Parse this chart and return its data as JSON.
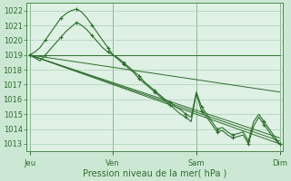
{
  "bg_color": "#cce8d4",
  "plot_bg": "#dff0e4",
  "grid_color": "#aacfb5",
  "line_color": "#2d6e2d",
  "tick_color": "#2d6e2d",
  "spine_color": "#4a8a4a",
  "xlabel": "Pression niveau de la mer( hPa )",
  "xlabel_fontsize": 7.0,
  "tick_fontsize": 6.0,
  "ylim": [
    1012.5,
    1022.5
  ],
  "yticks": [
    1013,
    1014,
    1015,
    1016,
    1017,
    1018,
    1019,
    1020,
    1021,
    1022
  ],
  "day_labels": [
    "Jeu",
    "Ven",
    "Sam",
    "Dim"
  ],
  "day_positions": [
    0,
    96,
    192,
    288
  ],
  "total_hours": 292,
  "xlim": [
    -4,
    292
  ],
  "straight_lines": [
    {
      "x": [
        0,
        288
      ],
      "y": [
        1019.0,
        1013.0
      ]
    },
    {
      "x": [
        0,
        288
      ],
      "y": [
        1019.0,
        1013.2
      ]
    },
    {
      "x": [
        0,
        288
      ],
      "y": [
        1019.0,
        1013.4
      ]
    },
    {
      "x": [
        0,
        288
      ],
      "y": [
        1019.0,
        1016.5
      ]
    },
    {
      "x": [
        0,
        288
      ],
      "y": [
        1019.0,
        1019.0
      ]
    }
  ],
  "marker_line1_x": [
    0,
    6,
    12,
    18,
    24,
    30,
    36,
    42,
    48,
    54,
    60,
    66,
    72,
    78,
    84,
    90,
    96,
    102,
    108,
    114,
    120,
    126,
    132,
    138,
    144,
    150,
    156,
    162,
    168,
    174,
    180,
    186,
    192,
    198,
    204,
    210,
    216,
    222,
    228,
    234,
    240,
    246,
    252,
    258,
    264,
    270,
    276,
    282,
    288
  ],
  "marker_line1_y": [
    1019.0,
    1019.2,
    1019.5,
    1020.0,
    1020.5,
    1021.0,
    1021.5,
    1021.8,
    1022.0,
    1022.1,
    1021.9,
    1021.5,
    1021.0,
    1020.5,
    1020.0,
    1019.5,
    1019.0,
    1018.8,
    1018.5,
    1018.2,
    1017.9,
    1017.6,
    1017.2,
    1016.9,
    1016.6,
    1016.3,
    1016.0,
    1015.8,
    1015.5,
    1015.3,
    1015.0,
    1014.8,
    1016.5,
    1015.5,
    1015.0,
    1014.5,
    1014.0,
    1014.1,
    1013.8,
    1013.6,
    1013.7,
    1013.8,
    1013.2,
    1014.5,
    1015.0,
    1014.5,
    1014.0,
    1013.5,
    1013.0
  ],
  "marker_line2_x": [
    0,
    6,
    12,
    18,
    24,
    30,
    36,
    42,
    48,
    54,
    60,
    66,
    72,
    78,
    84,
    90,
    96,
    102,
    108,
    114,
    120,
    126,
    132,
    138,
    144,
    150,
    156,
    162,
    168,
    174,
    180,
    186,
    192,
    198,
    204,
    210,
    216,
    222,
    228,
    234,
    240,
    246,
    252,
    258,
    264,
    270,
    276,
    282,
    288
  ],
  "marker_line2_y": [
    1019.0,
    1018.8,
    1018.6,
    1019.0,
    1019.4,
    1019.8,
    1020.2,
    1020.6,
    1020.9,
    1021.2,
    1021.0,
    1020.7,
    1020.3,
    1019.9,
    1019.5,
    1019.2,
    1019.0,
    1018.7,
    1018.4,
    1018.1,
    1017.8,
    1017.4,
    1017.1,
    1016.8,
    1016.5,
    1016.2,
    1015.9,
    1015.6,
    1015.3,
    1015.0,
    1014.8,
    1014.5,
    1016.4,
    1015.2,
    1014.8,
    1014.3,
    1013.8,
    1013.9,
    1013.6,
    1013.4,
    1013.5,
    1013.6,
    1013.0,
    1014.2,
    1014.8,
    1014.3,
    1013.8,
    1013.3,
    1013.0
  ]
}
